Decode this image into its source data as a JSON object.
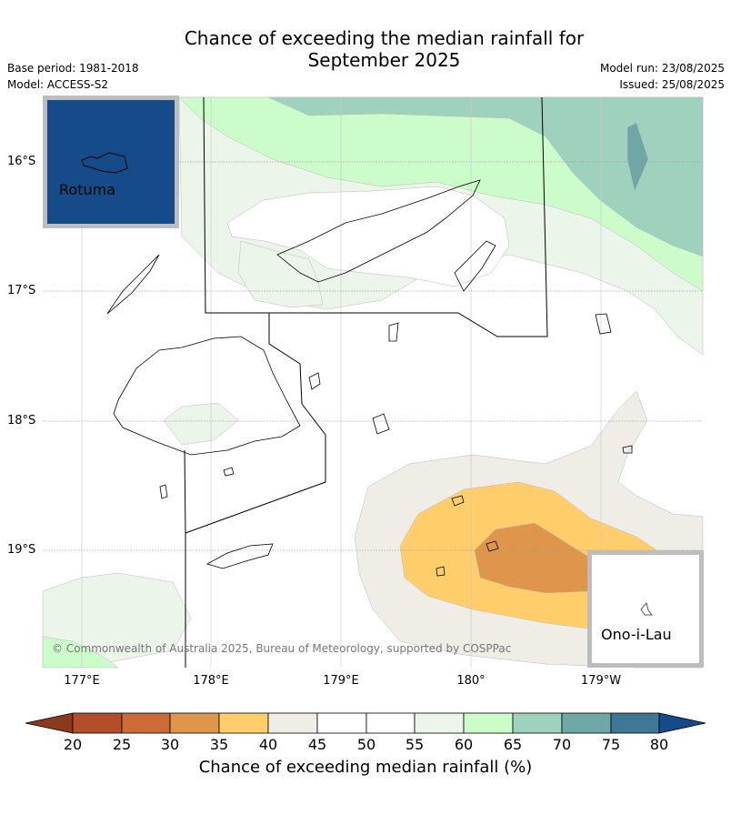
{
  "header": {
    "title_line1": "Chance of exceeding the median rainfall for",
    "title_line2": "September 2025",
    "base_period": "Base period: 1981-2018",
    "model": "Model: ACCESS-S2",
    "model_run": "Model run: 23/08/2025",
    "issued": "Issued: 25/08/2025"
  },
  "map": {
    "lat_labels": [
      "16°S",
      "17°S",
      "18°S",
      "19°S"
    ],
    "lon_labels": [
      "177°E",
      "178°E",
      "179°E",
      "180°",
      "179°W"
    ],
    "credit": "© Commonwealth of Australia 2025, Bureau of Meteorology, supported by COSPPac",
    "insets": [
      {
        "name": "Rotuma",
        "fill": "#154b88"
      },
      {
        "name": "Ono-i-Lau",
        "fill": "#ffffff"
      }
    ],
    "colors": {
      "c20_25": "#b34e2a",
      "c25_30": "#cc6a38",
      "c30_35": "#e0964a",
      "c35_40": "#ffce6b",
      "c40_45": "#f0ece6",
      "c45_55": "#ffffff",
      "c55_60": "#ebf5e9",
      "c60_65": "#ccfcca",
      "c65_70": "#9fd2bc",
      "c70_75": "#6ea7a5",
      "c75_80": "#3f7896",
      "c80": "#154b88",
      "c_below20": "#8b3a1e"
    }
  },
  "colorbar": {
    "ticks": [
      "20",
      "25",
      "30",
      "35",
      "40",
      "45",
      "50",
      "55",
      "60",
      "65",
      "70",
      "75",
      "80"
    ],
    "label": "Chance of exceeding median rainfall (%)"
  }
}
